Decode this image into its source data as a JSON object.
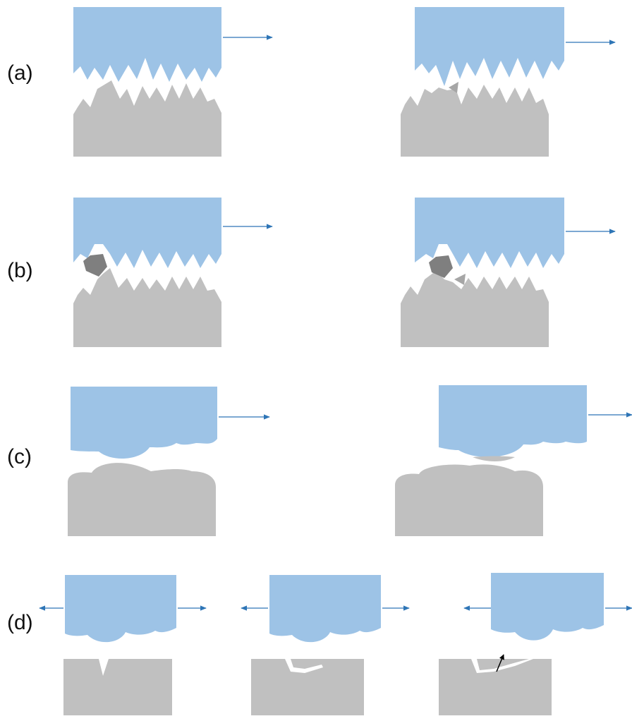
{
  "colors": {
    "upper_body": "#9DC3E6",
    "lower_body": "#C0C0C0",
    "debris_particle": "#7F7F7F",
    "wear_fragment": "#A6A6A6",
    "motion_arrow": "#2E75B6",
    "crack": "#FFFFFF",
    "crack_arrow": "#000000",
    "background": "#FFFFFF"
  },
  "rows": [
    {
      "label": "(a)"
    },
    {
      "label": "(b)"
    },
    {
      "label": "(c)"
    },
    {
      "label": "(d)"
    }
  ]
}
